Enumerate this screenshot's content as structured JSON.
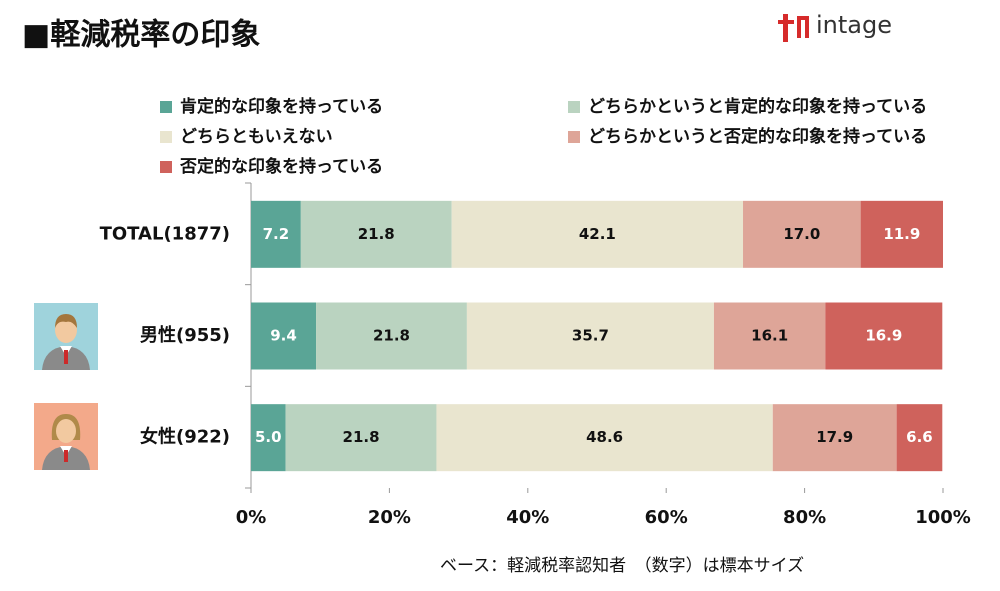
{
  "chart_data": {
    "type": "stacked-bar-horizontal",
    "title": "■軽減税率の印象",
    "logo_text": "intage",
    "note": "ベース：軽減税率認知者　（数字）は標本サイズ",
    "categories": [
      "TOTAL(1877)",
      "男性(955)",
      "女性(922)"
    ],
    "series": [
      {
        "name": "肯定的な印象を持っている",
        "color": "#5aa596",
        "values": [
          7.2,
          9.4,
          5.0
        ],
        "value_labels": [
          "7.2",
          "9.4",
          "5.0"
        ]
      },
      {
        "name": "どちらかというと肯定的な印象を持っている",
        "color": "#bad3c0",
        "values": [
          21.8,
          21.8,
          21.8
        ],
        "value_labels": [
          "21.8",
          "21.8",
          "21.8"
        ]
      },
      {
        "name": "どちらともいえない",
        "color": "#e9e5cf",
        "values": [
          42.1,
          35.7,
          48.6
        ],
        "value_labels": [
          "42.1",
          "35.7",
          "48.6"
        ]
      },
      {
        "name": "どちらかというと否定的な印象を持っている",
        "color": "#dea598",
        "values": [
          17.0,
          16.1,
          17.9
        ],
        "value_labels": [
          "17.0",
          "16.1",
          "17.9"
        ]
      },
      {
        "name": "否定的な印象を持っている",
        "color": "#cf625c",
        "values": [
          11.9,
          16.9,
          6.6
        ],
        "value_labels": [
          "11.9",
          "16.9",
          "6.6"
        ]
      }
    ],
    "xlim": [
      0,
      100
    ],
    "xticks": [
      {
        "value": 0,
        "label": "0%"
      },
      {
        "value": 20,
        "label": "20%"
      },
      {
        "value": 40,
        "label": "40%"
      },
      {
        "value": 60,
        "label": "60%"
      },
      {
        "value": 80,
        "label": "80%"
      },
      {
        "value": 100,
        "label": "100%"
      }
    ]
  }
}
